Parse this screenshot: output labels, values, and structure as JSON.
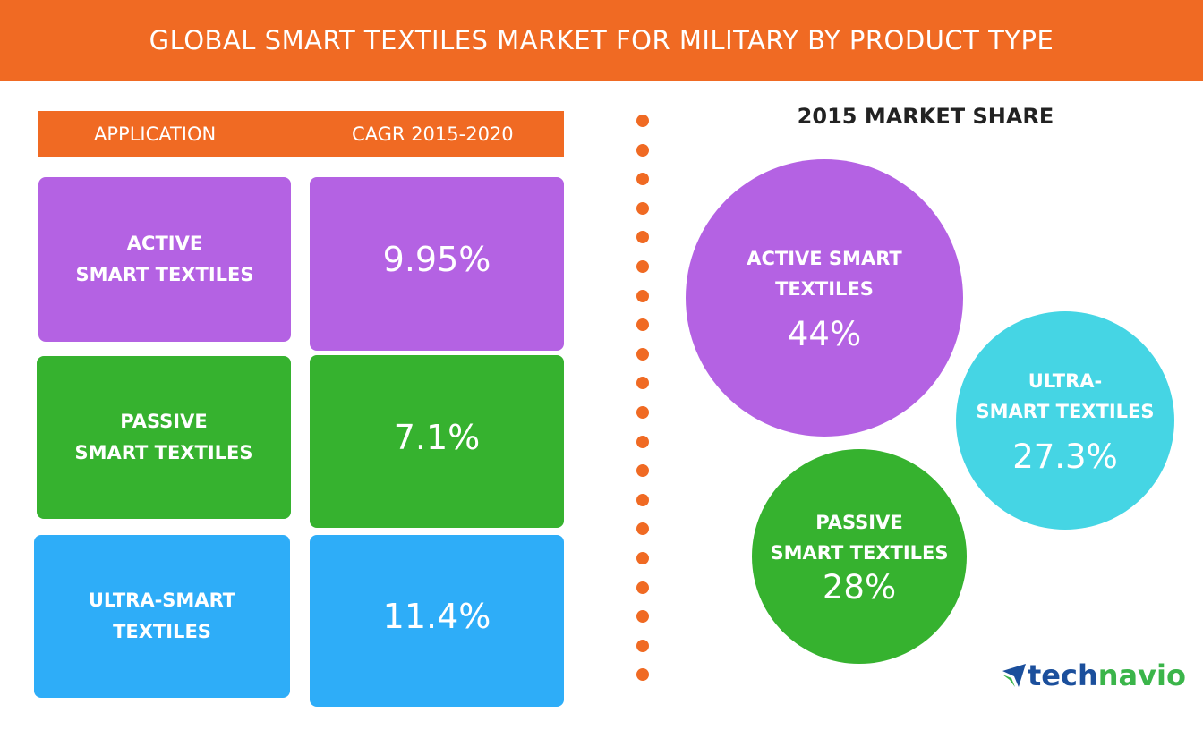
{
  "title": "GLOBAL SMART TEXTILES MARKET FOR MILITARY BY PRODUCT TYPE",
  "table": {
    "headers": [
      "APPLICATION",
      "CAGR 2015-2020"
    ],
    "rows": [
      {
        "label_line1": "ACTIVE",
        "label_line2": "SMART TEXTILES",
        "cagr": "9.95%",
        "color": "#b462e3"
      },
      {
        "label_line1": "PASSIVE",
        "label_line2": "SMART TEXTILES",
        "cagr": "7.1%",
        "color": "#36b22f"
      },
      {
        "label_line1": "ULTRA-SMART",
        "label_line2": "TEXTILES",
        "cagr": "11.4%",
        "color": "#2eadf8"
      }
    ]
  },
  "chart_data": {
    "type": "bubble",
    "title": "2015 MARKET SHARE",
    "categories": [
      "Active Smart Textiles",
      "Ultra-Smart Textiles",
      "Passive Smart Textiles"
    ],
    "values": [
      44,
      27.3,
      28
    ],
    "unit": "%",
    "bubbles": [
      {
        "line1": "ACTIVE SMART",
        "line2": "TEXTILES",
        "value_label": "44%",
        "value": 44,
        "color": "#b462e3"
      },
      {
        "line1": "ULTRA-",
        "line2": "SMART TEXTILES",
        "value_label": "27.3%",
        "value": 27.3,
        "color": "#45d5e4"
      },
      {
        "line1": "PASSIVE",
        "line2": "SMART TEXTILES",
        "value_label": "28%",
        "value": 28,
        "color": "#36b22f"
      }
    ]
  },
  "logo": {
    "part1": "tech",
    "part2": "navio"
  },
  "colors": {
    "accent": "#f06a23",
    "logo_blue": "#1b4f9c",
    "logo_green": "#3bb54a"
  }
}
